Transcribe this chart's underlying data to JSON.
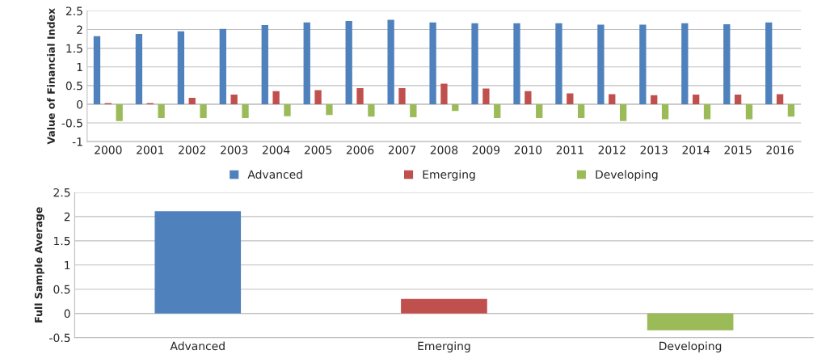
{
  "chart_data": [
    {
      "type": "bar",
      "ylabel": "Value of Financial Index",
      "categories": [
        "2000",
        "2001",
        "2002",
        "2003",
        "2004",
        "2005",
        "2006",
        "2007",
        "2008",
        "2009",
        "2010",
        "2011",
        "2012",
        "2013",
        "2014",
        "2015",
        "2016"
      ],
      "series": [
        {
          "name": "Advanced",
          "color": "#4f81bd",
          "values": [
            1.82,
            1.88,
            1.95,
            2.02,
            2.12,
            2.19,
            2.23,
            2.26,
            2.19,
            2.17,
            2.17,
            2.17,
            2.13,
            2.13,
            2.17,
            2.14,
            2.19
          ]
        },
        {
          "name": "Emerging",
          "color": "#c0504d",
          "values": [
            0.03,
            0.03,
            0.17,
            0.26,
            0.35,
            0.38,
            0.43,
            0.43,
            0.55,
            0.42,
            0.35,
            0.29,
            0.27,
            0.24,
            0.26,
            0.26,
            0.27
          ]
        },
        {
          "name": "Developing",
          "color": "#9bbb59",
          "values": [
            -0.45,
            -0.37,
            -0.37,
            -0.37,
            -0.32,
            -0.29,
            -0.33,
            -0.35,
            -0.18,
            -0.37,
            -0.37,
            -0.37,
            -0.45,
            -0.4,
            -0.4,
            -0.4,
            -0.33
          ]
        }
      ],
      "ylim": [
        -1,
        2.5
      ],
      "yticks": [
        -1,
        -0.5,
        0,
        0.5,
        1,
        1.5,
        2,
        2.5
      ],
      "grid": "y",
      "legend": "bottom"
    },
    {
      "type": "bar",
      "ylabel": "Full Sample Average",
      "categories": [
        "Advanced",
        "Emerging",
        "Developing"
      ],
      "values": [
        2.11,
        0.3,
        -0.35
      ],
      "colors": [
        "#4f81bd",
        "#c0504d",
        "#9bbb59"
      ],
      "ylim": [
        -0.5,
        2.5
      ],
      "yticks": [
        -0.5,
        0,
        0.5,
        1,
        1.5,
        2,
        2.5
      ],
      "grid": "y"
    }
  ]
}
